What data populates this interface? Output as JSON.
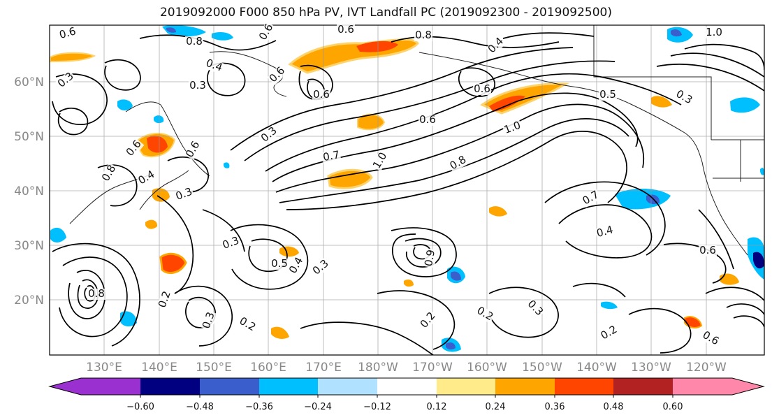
{
  "title": "2019092000 F000 850 hPa PV, IVT Landfall PC (2019092300 - 2019092500)",
  "lat_labels": [
    "20°N",
    "30°N",
    "40°N",
    "50°N",
    "60°N"
  ],
  "lon_labels": [
    "130°E",
    "140°E",
    "150°E",
    "160°E",
    "170°E",
    "180°W",
    "170°W",
    "160°W",
    "150°W",
    "140°W",
    "130°W",
    "120°W"
  ],
  "colorbar": {
    "ticks": [
      "−0.60",
      "−0.48",
      "−0.36",
      "−0.24",
      "−0.12",
      "0.12",
      "0.24",
      "0.36",
      "0.48",
      "0.60"
    ],
    "colors": [
      "#9b30d0",
      "#000080",
      "#3a5fcd",
      "#00bfff",
      "#b0e2ff",
      "#ffffff",
      "#ffeb8a",
      "#ffa500",
      "#ff4500",
      "#b22222",
      "#ff88aa"
    ]
  },
  "contour_labels": [
    {
      "t": "0.6"
    },
    {
      "t": "0.8"
    },
    {
      "t": "0.6"
    },
    {
      "t": "0.6"
    },
    {
      "t": "0.8"
    },
    {
      "t": "1.0"
    },
    {
      "t": "0.4"
    },
    {
      "t": "0.3"
    },
    {
      "t": "0.3"
    },
    {
      "t": "0.6"
    },
    {
      "t": "0.6"
    },
    {
      "t": "0.4"
    },
    {
      "t": "0.6"
    },
    {
      "t": "0.5"
    },
    {
      "t": "0.3"
    },
    {
      "t": "0.6"
    },
    {
      "t": "1.0"
    },
    {
      "t": "0.7"
    },
    {
      "t": "1.0"
    },
    {
      "t": "0.8"
    },
    {
      "t": "0.6"
    },
    {
      "t": "0.4"
    },
    {
      "t": "0.3"
    },
    {
      "t": "0.7"
    },
    {
      "t": "0.4"
    },
    {
      "t": "0.3"
    },
    {
      "t": "0.5"
    },
    {
      "t": "0.4"
    },
    {
      "t": "0.3"
    },
    {
      "t": "0.2"
    },
    {
      "t": "0.3"
    },
    {
      "t": "0.2"
    },
    {
      "t": "0.2"
    },
    {
      "t": "0.3"
    },
    {
      "t": "0.2"
    },
    {
      "t": "0.6"
    },
    {
      "t": "0.2"
    },
    {
      "t": "0.8"
    },
    {
      "t": "0.9"
    },
    {
      "t": "0.8"
    },
    {
      "t": "0.6"
    },
    {
      "t": "0.3"
    },
    {
      "t": "0.6"
    }
  ]
}
